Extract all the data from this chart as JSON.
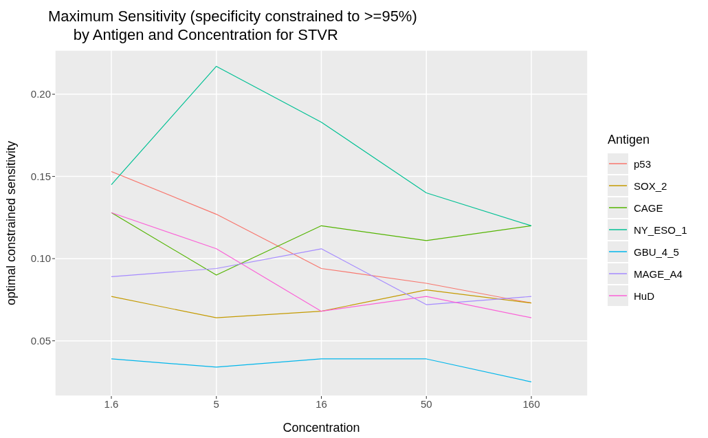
{
  "chart_data": {
    "type": "line",
    "title": "Maximum Sensitivity (specificity constrained to >=95%)\n      by Antigen and Concentration for STVR",
    "xlabel": "Concentration",
    "ylabel": "optimal constrained sensitivity",
    "legend_title": "Antigen",
    "categories": [
      "1.6",
      "5",
      "16",
      "50",
      "160"
    ],
    "series": [
      {
        "name": "p53",
        "color": "#f8766d",
        "values": [
          0.153,
          0.127,
          0.094,
          0.085,
          0.073
        ]
      },
      {
        "name": "SOX_2",
        "color": "#c49a00",
        "values": [
          0.077,
          0.064,
          0.068,
          0.081,
          0.073
        ]
      },
      {
        "name": "CAGE",
        "color": "#53b400",
        "values": [
          0.128,
          0.09,
          0.12,
          0.111,
          0.12
        ]
      },
      {
        "name": "NY_ESO_1",
        "color": "#00c094",
        "values": [
          0.145,
          0.217,
          0.183,
          0.14,
          0.12
        ]
      },
      {
        "name": "GBU_4_5",
        "color": "#00b6eb",
        "values": [
          0.039,
          0.034,
          0.039,
          0.039,
          0.025
        ]
      },
      {
        "name": "MAGE_A4",
        "color": "#a58aff",
        "values": [
          0.089,
          0.094,
          0.106,
          0.072,
          0.077
        ]
      },
      {
        "name": "HuD",
        "color": "#fb61d7",
        "values": [
          0.128,
          0.106,
          0.068,
          0.077,
          0.064
        ]
      }
    ],
    "ylim": [
      0.0164,
      0.2268
    ],
    "yticks": [
      0.05,
      {
        "value": 0.1,
        "label": "0.10"
      },
      0.15,
      {
        "value": 0.2,
        "label": "0.20"
      }
    ],
    "grid": true,
    "legend": "right",
    "marker": "none",
    "line_style": "solid"
  }
}
